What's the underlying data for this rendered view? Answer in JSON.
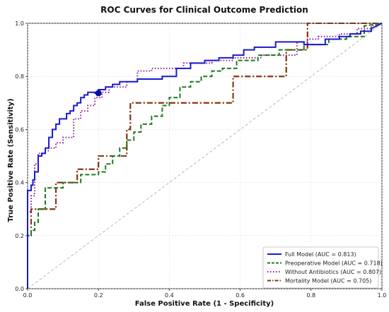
{
  "chart_data": {
    "type": "line",
    "title": "ROC Curves for Clinical Outcome Prediction",
    "xlabel": "False Positive Rate (1 - Specificity)",
    "ylabel": "True Positive Rate (Sensitivity)",
    "xlim": [
      0,
      1
    ],
    "ylim": [
      0,
      1
    ],
    "xticks": [
      "0.0",
      "0.2",
      "0.4",
      "0.6",
      "0.8",
      "1.0"
    ],
    "yticks": [
      "0.0",
      "0.2",
      "0.4",
      "0.6",
      "0.8",
      "1.0"
    ],
    "grid": true,
    "legend_position": "bottom-right",
    "diagonal": {
      "x": [
        0,
        1
      ],
      "y": [
        0,
        1
      ],
      "color": "#b0b0b0",
      "style": "dashed"
    },
    "highlight_point": {
      "x": 0.2,
      "y": 0.737,
      "color": "#0a0aa0"
    },
    "series": [
      {
        "name": "Full Model (AUC = 0.813)",
        "color": "#1a1acd",
        "style": "solid",
        "x": [
          0,
          0,
          0.01,
          0.01,
          0.015,
          0.015,
          0.02,
          0.02,
          0.03,
          0.03,
          0.04,
          0.04,
          0.05,
          0.05,
          0.06,
          0.06,
          0.07,
          0.07,
          0.08,
          0.08,
          0.09,
          0.09,
          0.11,
          0.11,
          0.12,
          0.12,
          0.13,
          0.13,
          0.14,
          0.14,
          0.15,
          0.15,
          0.16,
          0.16,
          0.17,
          0.17,
          0.18,
          0.18,
          0.19,
          0.19,
          0.2,
          0.2,
          0.22,
          0.22,
          0.24,
          0.24,
          0.26,
          0.26,
          0.28,
          0.28,
          0.31,
          0.31,
          0.38,
          0.38,
          0.42,
          0.42,
          0.46,
          0.46,
          0.5,
          0.5,
          0.54,
          0.54,
          0.58,
          0.58,
          0.61,
          0.61,
          0.64,
          0.64,
          0.7,
          0.7,
          0.78,
          0.78,
          0.84,
          0.84,
          0.88,
          0.88,
          0.91,
          0.91,
          0.94,
          0.94,
          0.97,
          0.97,
          1.0
        ],
        "y": [
          0,
          0.37,
          0.37,
          0.39,
          0.39,
          0.41,
          0.41,
          0.44,
          0.44,
          0.5,
          0.5,
          0.51,
          0.51,
          0.53,
          0.53,
          0.57,
          0.57,
          0.6,
          0.6,
          0.62,
          0.62,
          0.64,
          0.64,
          0.66,
          0.66,
          0.67,
          0.67,
          0.69,
          0.69,
          0.7,
          0.7,
          0.72,
          0.72,
          0.73,
          0.73,
          0.74,
          0.74,
          0.74,
          0.74,
          0.737,
          0.737,
          0.75,
          0.75,
          0.76,
          0.76,
          0.77,
          0.77,
          0.78,
          0.78,
          0.78,
          0.78,
          0.79,
          0.79,
          0.8,
          0.8,
          0.83,
          0.83,
          0.85,
          0.85,
          0.86,
          0.86,
          0.87,
          0.87,
          0.88,
          0.88,
          0.9,
          0.9,
          0.91,
          0.91,
          0.93,
          0.93,
          0.92,
          0.92,
          0.94,
          0.94,
          0.95,
          0.95,
          0.96,
          0.96,
          0.97,
          0.97,
          0.98,
          1.0
        ]
      },
      {
        "name": "Preoperative Model (AUC = 0.718)",
        "color": "#1e7a1e",
        "style": "dashed",
        "x": [
          0,
          0,
          0.01,
          0.01,
          0.02,
          0.02,
          0.03,
          0.03,
          0.05,
          0.05,
          0.1,
          0.1,
          0.15,
          0.15,
          0.2,
          0.2,
          0.22,
          0.22,
          0.24,
          0.24,
          0.26,
          0.26,
          0.28,
          0.28,
          0.3,
          0.3,
          0.32,
          0.32,
          0.35,
          0.35,
          0.38,
          0.38,
          0.4,
          0.4,
          0.43,
          0.43,
          0.46,
          0.46,
          0.49,
          0.49,
          0.52,
          0.52,
          0.55,
          0.55,
          0.59,
          0.59,
          0.65,
          0.65,
          0.71,
          0.71,
          0.78,
          0.78,
          0.85,
          0.85,
          0.9,
          0.9,
          0.95,
          0.95,
          1.0
        ],
        "y": [
          0,
          0.2,
          0.2,
          0.22,
          0.22,
          0.25,
          0.25,
          0.3,
          0.3,
          0.38,
          0.38,
          0.4,
          0.4,
          0.43,
          0.43,
          0.44,
          0.44,
          0.47,
          0.47,
          0.5,
          0.5,
          0.53,
          0.53,
          0.56,
          0.56,
          0.59,
          0.59,
          0.62,
          0.62,
          0.65,
          0.65,
          0.69,
          0.69,
          0.72,
          0.72,
          0.76,
          0.76,
          0.78,
          0.78,
          0.8,
          0.8,
          0.82,
          0.82,
          0.83,
          0.83,
          0.86,
          0.86,
          0.88,
          0.88,
          0.9,
          0.9,
          0.92,
          0.92,
          0.94,
          0.94,
          0.95,
          0.95,
          0.99,
          1.0
        ]
      },
      {
        "name": "Without Antibiotics (AUC = 0.807)",
        "color": "#8a1a9a",
        "style": "dotted",
        "x": [
          0,
          0,
          0.01,
          0.01,
          0.02,
          0.02,
          0.03,
          0.03,
          0.05,
          0.05,
          0.06,
          0.06,
          0.08,
          0.08,
          0.1,
          0.1,
          0.13,
          0.13,
          0.15,
          0.15,
          0.17,
          0.17,
          0.19,
          0.19,
          0.21,
          0.21,
          0.23,
          0.23,
          0.28,
          0.28,
          0.31,
          0.31,
          0.35,
          0.35,
          0.44,
          0.44,
          0.52,
          0.52,
          0.58,
          0.58,
          0.66,
          0.66,
          0.76,
          0.76,
          0.79,
          0.79,
          0.82,
          0.82,
          0.88,
          0.88,
          0.93,
          0.93,
          0.97,
          0.97,
          1.0
        ],
        "y": [
          0,
          0.29,
          0.29,
          0.35,
          0.35,
          0.47,
          0.47,
          0.51,
          0.51,
          0.52,
          0.52,
          0.53,
          0.53,
          0.55,
          0.55,
          0.57,
          0.57,
          0.64,
          0.64,
          0.67,
          0.67,
          0.69,
          0.69,
          0.72,
          0.72,
          0.74,
          0.74,
          0.76,
          0.76,
          0.78,
          0.78,
          0.82,
          0.82,
          0.83,
          0.83,
          0.85,
          0.85,
          0.86,
          0.86,
          0.87,
          0.87,
          0.88,
          0.88,
          0.93,
          0.93,
          0.94,
          0.94,
          0.95,
          0.95,
          0.96,
          0.96,
          0.98,
          0.98,
          0.99,
          1.0
        ]
      },
      {
        "name": "Mortality Model (AUC = 0.705)",
        "color": "#7a3a12",
        "style": "dashdot",
        "x": [
          0,
          0,
          0.01,
          0.01,
          0.08,
          0.08,
          0.14,
          0.14,
          0.2,
          0.2,
          0.28,
          0.28,
          0.29,
          0.29,
          0.58,
          0.58,
          0.73,
          0.73,
          0.79,
          0.79,
          1.0
        ],
        "y": [
          0,
          0.2,
          0.2,
          0.3,
          0.3,
          0.4,
          0.4,
          0.45,
          0.45,
          0.5,
          0.5,
          0.6,
          0.6,
          0.7,
          0.7,
          0.8,
          0.8,
          0.9,
          0.9,
          1.0,
          1.0
        ]
      },
      {
        "name": "",
        "color": "#e81010",
        "style": "dashdot",
        "x": [
          0,
          0,
          0.01,
          0.01,
          0.08,
          0.08,
          0.14,
          0.14,
          0.2,
          0.2,
          0.28,
          0.28,
          0.29,
          0.29,
          0.58,
          0.58,
          0.73,
          0.73,
          0.79,
          0.79,
          1.0
        ],
        "y": [
          0,
          0.2,
          0.2,
          0.3,
          0.3,
          0.4,
          0.4,
          0.45,
          0.45,
          0.5,
          0.5,
          0.6,
          0.6,
          0.7,
          0.7,
          0.8,
          0.8,
          0.9,
          0.9,
          1.0,
          1.0
        ]
      }
    ]
  }
}
